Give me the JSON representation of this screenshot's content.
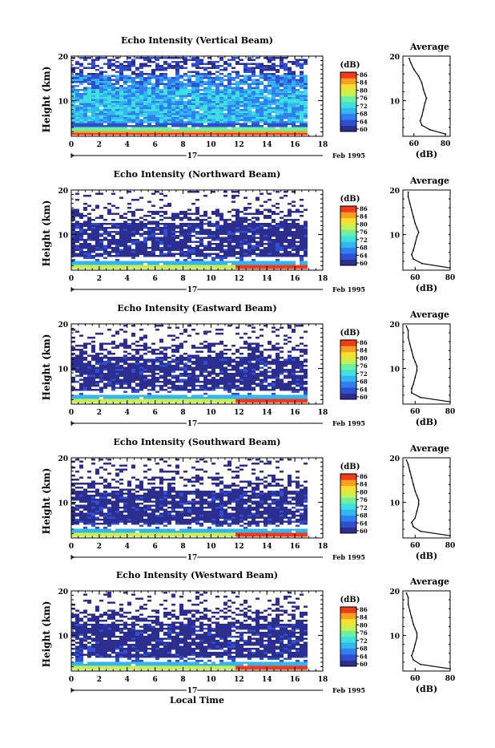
{
  "figure": {
    "bottom_xlabel": "Local Time",
    "colorbar_unit": "(dB)",
    "colorbar_ticks": [
      "86",
      "84",
      "80",
      "76",
      "72",
      "68",
      "64",
      "60"
    ],
    "colormap": [
      "#2b2d8f",
      "#2f4fd0",
      "#2f7ff0",
      "#33b5f2",
      "#3fe0e0",
      "#6ef0a0",
      "#c8f050",
      "#f5e030",
      "#f5a020",
      "#f03a1a"
    ]
  },
  "chart_data": [
    {
      "type": "heatmap",
      "title": "Echo Intensity (Vertical Beam)",
      "ylabel": "Height (km)",
      "xlabel": "",
      "x_ticks": [
        "0",
        "2",
        "4",
        "6",
        "8",
        "10",
        "12",
        "14",
        "16",
        "18"
      ],
      "x_day_label": "17",
      "x_month_label": "Feb 1995",
      "y_ticks": [
        "20",
        "10"
      ],
      "xlim": [
        0,
        18
      ],
      "ylim": [
        2,
        20
      ],
      "profile": {
        "title": "Average",
        "xlabel": "(dB)",
        "x_ticks": [
          "60",
          "80"
        ],
        "y_ticks": [
          "20",
          "10"
        ],
        "xlim": [
          53,
          83
        ],
        "heights": [
          2.5,
          3.5,
          4.5,
          5.5,
          6.5,
          8,
          9.5,
          10.5,
          11.5,
          12.5,
          14,
          15.5,
          17,
          18.5,
          19.5
        ],
        "values": [
          80,
          70,
          65,
          64,
          65,
          66,
          67,
          68,
          67,
          66,
          65,
          63,
          60,
          58,
          57
        ]
      }
    },
    {
      "type": "heatmap",
      "title": "Echo Intensity (Northward Beam)",
      "ylabel": "Height (km)",
      "xlabel": "",
      "x_ticks": [
        "0",
        "2",
        "4",
        "6",
        "8",
        "10",
        "12",
        "14",
        "16",
        "18"
      ],
      "x_day_label": "17",
      "x_month_label": "Feb 1995",
      "y_ticks": [
        "20",
        "10"
      ],
      "xlim": [
        0,
        18
      ],
      "ylim": [
        2,
        20
      ],
      "profile": {
        "title": "Average",
        "xlabel": "(dB)",
        "x_ticks": [
          "60",
          "80"
        ],
        "y_ticks": [
          "20",
          "10"
        ],
        "xlim": [
          53,
          80
        ],
        "heights": [
          2.5,
          3.5,
          4.5,
          5.5,
          6.5,
          8,
          9.5,
          10.5,
          11.5,
          12.5,
          14,
          15.5,
          17,
          18.5,
          19.5
        ],
        "values": [
          80,
          64,
          59,
          58,
          59,
          60,
          61,
          62,
          61,
          60,
          59,
          58,
          57,
          56,
          56
        ]
      }
    },
    {
      "type": "heatmap",
      "title": "Echo Intensity (Eastward Beam)",
      "ylabel": "Height (km)",
      "xlabel": "",
      "x_ticks": [
        "0",
        "2",
        "4",
        "6",
        "8",
        "10",
        "12",
        "14",
        "16",
        "18"
      ],
      "x_day_label": "17",
      "x_month_label": "Feb 1995",
      "y_ticks": [
        "20",
        "10"
      ],
      "xlim": [
        0,
        18
      ],
      "ylim": [
        2,
        20
      ],
      "profile": {
        "title": "Average",
        "xlabel": "(dB)",
        "x_ticks": [
          "60",
          "80"
        ],
        "y_ticks": [
          "20",
          "10"
        ],
        "xlim": [
          53,
          80
        ],
        "heights": [
          2.5,
          3.5,
          4.5,
          5.5,
          6.5,
          8,
          9.5,
          10.5,
          11.5,
          12.5,
          14,
          15.5,
          17,
          18.5,
          19.5
        ],
        "values": [
          80,
          63,
          58,
          58,
          59,
          60,
          61,
          61,
          60,
          59,
          58,
          57,
          56,
          56,
          55
        ]
      }
    },
    {
      "type": "heatmap",
      "title": "Echo Intensity (Southward Beam)",
      "ylabel": "Height (km)",
      "xlabel": "",
      "x_ticks": [
        "0",
        "2",
        "4",
        "6",
        "8",
        "10",
        "12",
        "14",
        "16",
        "18"
      ],
      "x_day_label": "17",
      "x_month_label": "Feb 1995",
      "y_ticks": [
        "20",
        "10"
      ],
      "xlim": [
        0,
        18
      ],
      "ylim": [
        2,
        20
      ],
      "profile": {
        "title": "Average",
        "xlabel": "(dB)",
        "x_ticks": [
          "60",
          "80"
        ],
        "y_ticks": [
          "20",
          "10"
        ],
        "xlim": [
          53,
          80
        ],
        "heights": [
          2.5,
          3.5,
          4.5,
          5.5,
          6.5,
          8,
          9.5,
          10.5,
          11.5,
          12.5,
          14,
          15.5,
          17,
          18.5,
          19.5
        ],
        "values": [
          80,
          63,
          59,
          58,
          60,
          61,
          62,
          62,
          61,
          60,
          59,
          58,
          57,
          56,
          55
        ]
      }
    },
    {
      "type": "heatmap",
      "title": "Echo Intensity (Westward Beam)",
      "ylabel": "Height (km)",
      "xlabel": "Local Time",
      "x_ticks": [
        "0",
        "2",
        "4",
        "6",
        "8",
        "10",
        "12",
        "14",
        "16",
        "18"
      ],
      "x_day_label": "17",
      "x_month_label": "Feb 1995",
      "y_ticks": [
        "20",
        "10"
      ],
      "xlim": [
        0,
        18
      ],
      "ylim": [
        2,
        20
      ],
      "profile": {
        "title": "Average",
        "xlabel": "(dB)",
        "x_ticks": [
          "60",
          "80"
        ],
        "y_ticks": [
          "20",
          "10"
        ],
        "xlim": [
          53,
          80
        ],
        "heights": [
          2.5,
          3.5,
          4.5,
          5.5,
          6.5,
          8,
          9.5,
          10.5,
          11.5,
          12.5,
          14,
          15.5,
          17,
          18.5,
          19.5
        ],
        "values": [
          80,
          63,
          59,
          58,
          59,
          60,
          61,
          61,
          60,
          59,
          58,
          57,
          56,
          56,
          55
        ]
      }
    }
  ]
}
